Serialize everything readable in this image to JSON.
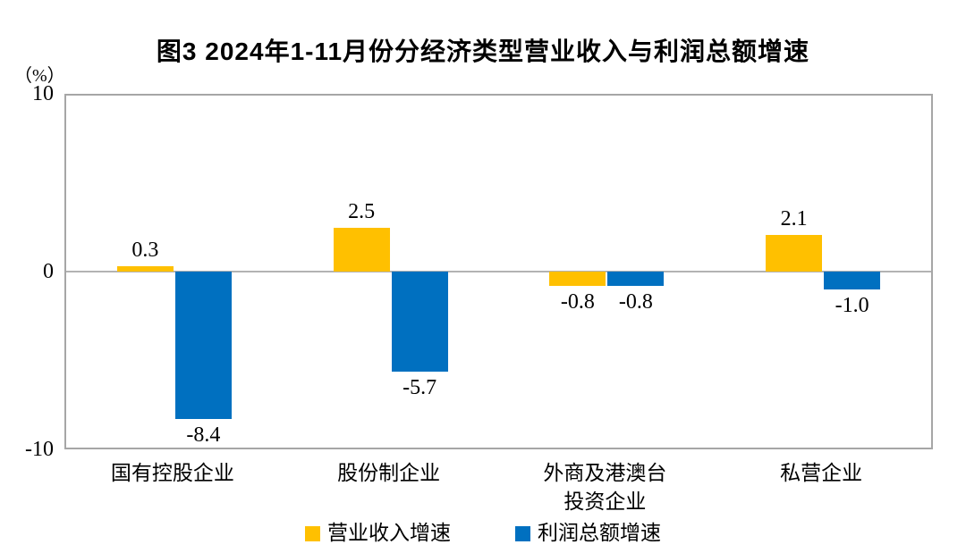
{
  "figure": {
    "title": "图3 2024年1-11月份分经济类型营业收入与利润总额增速",
    "y_axis_unit": "（%）"
  },
  "chart_data": {
    "type": "bar",
    "title": "图3 2024年1-11月份分经济类型营业收入与利润总额增速",
    "categories": [
      "国有控股企业",
      "股份制企业",
      "外商及港澳台\n投资企业",
      "私营企业"
    ],
    "series": [
      {
        "name": "营业收入增速",
        "color": "#FFC000",
        "values": [
          0.3,
          2.5,
          -0.8,
          2.1
        ]
      },
      {
        "name": "利润总额增速",
        "color": "#0070C0",
        "values": [
          -8.4,
          -5.7,
          -0.8,
          -1.0
        ]
      }
    ],
    "value_labels": [
      "0.3",
      "2.5",
      "-0.8",
      "2.1",
      "-8.4",
      "-5.7",
      "-0.8",
      "-1.0"
    ],
    "xlabel": "",
    "ylabel": "（%）",
    "ylim": [
      -10,
      10
    ],
    "yticks": [
      10,
      0,
      -10
    ],
    "grid": false,
    "legend_position": "bottom"
  },
  "colors": {
    "revenue_series": "#FFC000",
    "profit_series": "#0070C0",
    "plot_border": "#A6A6A6",
    "zero_line": "#B3B3B3",
    "text": "#000000",
    "background": "#FFFFFF"
  }
}
